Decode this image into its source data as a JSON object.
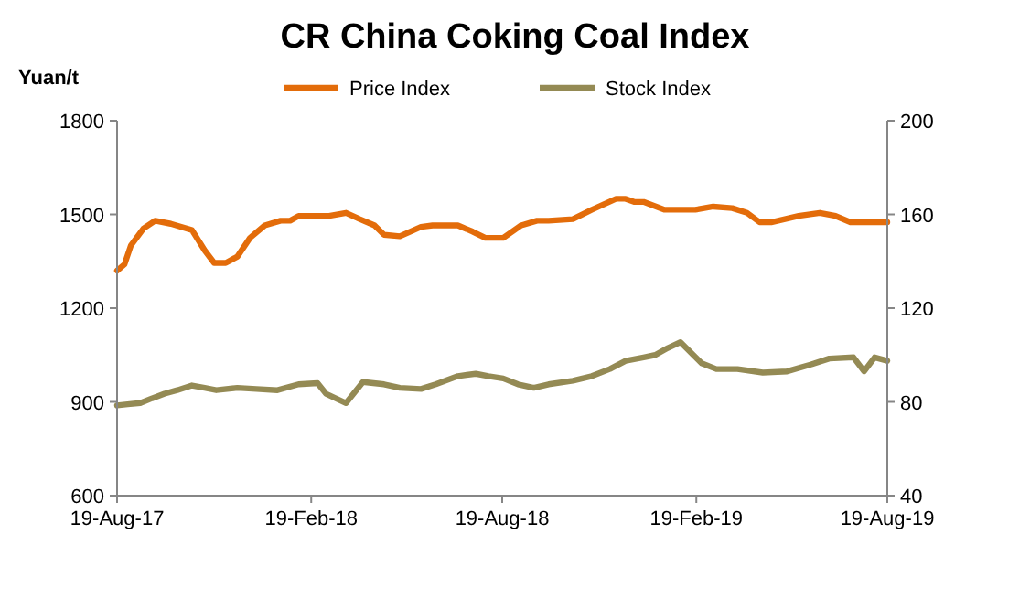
{
  "chart_data": {
    "type": "line",
    "title": "CR China Coking Coal Index",
    "ylabel": "Yuan/t",
    "xlim": [
      "2017-08-19",
      "2019-08-19"
    ],
    "xticks": [
      {
        "value": "2017-08-19",
        "label": "19-Aug-17"
      },
      {
        "value": "2018-02-19",
        "label": "19-Feb-18"
      },
      {
        "value": "2018-08-19",
        "label": "19-Aug-18"
      },
      {
        "value": "2019-02-19",
        "label": "19-Feb-19"
      },
      {
        "value": "2019-08-19",
        "label": "19-Aug-19"
      }
    ],
    "ylim": [
      600,
      1800
    ],
    "yticks": [
      600,
      900,
      1200,
      1500,
      1800
    ],
    "y2lim": [
      40,
      200
    ],
    "y2ticks": [
      40,
      80,
      120,
      160,
      200
    ],
    "legend": "top",
    "grid": false,
    "marker": "none",
    "line_style": "solid",
    "series": [
      {
        "name": "Price Index",
        "color": "#e36c0a",
        "x": [
          "2017-08-19",
          "2017-08-26",
          "2017-09-01",
          "2017-09-13",
          "2017-09-24",
          "2017-10-09",
          "2017-10-29",
          "2017-11-10",
          "2017-11-19",
          "2017-11-30",
          "2017-12-11",
          "2017-12-23",
          "2018-01-06",
          "2018-01-21",
          "2018-01-30",
          "2018-02-07",
          "2018-03-08",
          "2018-03-24",
          "2018-04-06",
          "2018-04-20",
          "2018-04-29",
          "2018-05-14",
          "2018-06-03",
          "2018-06-14",
          "2018-07-08",
          "2018-07-22",
          "2018-08-03",
          "2018-08-20",
          "2018-09-06",
          "2018-09-21",
          "2018-10-02",
          "2018-10-25",
          "2018-11-12",
          "2018-12-05",
          "2018-12-14",
          "2018-12-22",
          "2018-12-31",
          "2019-01-20",
          "2019-02-18",
          "2019-03-07",
          "2019-03-25",
          "2019-04-08",
          "2019-04-20",
          "2019-05-01",
          "2019-05-27",
          "2019-06-16",
          "2019-07-01",
          "2019-07-15",
          "2019-08-19"
        ],
        "values": [
          1320,
          1340,
          1400,
          1455,
          1480,
          1470,
          1450,
          1385,
          1345,
          1345,
          1365,
          1425,
          1465,
          1480,
          1480,
          1495,
          1495,
          1505,
          1485,
          1465,
          1435,
          1430,
          1460,
          1465,
          1465,
          1445,
          1425,
          1425,
          1465,
          1480,
          1480,
          1485,
          1515,
          1550,
          1550,
          1540,
          1540,
          1515,
          1515,
          1525,
          1520,
          1505,
          1475,
          1475,
          1495,
          1505,
          1495,
          1475,
          1475
        ]
      },
      {
        "name": "Stock Index",
        "color": "#948a54",
        "axis": "y2",
        "x": [
          "2017-08-19",
          "2017-08-29",
          "2017-09-10",
          "2017-09-21",
          "2017-10-03",
          "2017-10-15",
          "2017-10-29",
          "2017-11-10",
          "2017-11-21",
          "2017-12-11",
          "2017-12-29",
          "2018-01-18",
          "2018-02-07",
          "2018-02-25",
          "2018-03-05",
          "2018-03-24",
          "2018-04-09",
          "2018-04-29",
          "2018-05-14",
          "2018-06-03",
          "2018-06-17",
          "2018-07-08",
          "2018-07-25",
          "2018-08-06",
          "2018-08-20",
          "2018-09-03",
          "2018-09-18",
          "2018-10-02",
          "2018-10-25",
          "2018-11-12",
          "2018-11-29",
          "2018-12-14",
          "2018-12-31",
          "2019-01-11",
          "2019-01-23",
          "2019-02-04",
          "2019-02-24",
          "2019-03-10",
          "2019-03-30",
          "2019-04-23",
          "2019-05-16",
          "2019-06-08",
          "2019-06-25",
          "2019-07-18",
          "2019-07-28",
          "2019-08-07",
          "2019-08-19"
        ],
        "values": [
          78.5,
          79,
          79.5,
          81.5,
          83.5,
          85,
          87,
          86,
          85,
          86,
          85.5,
          85,
          87.5,
          88,
          83.5,
          79.5,
          88.5,
          87.5,
          86,
          85.5,
          87.5,
          91,
          92,
          91,
          90,
          87.5,
          86,
          87.5,
          89,
          91,
          94,
          97.5,
          99,
          100,
          103,
          105.5,
          96.5,
          94,
          94,
          92.5,
          93,
          96,
          98.5,
          99,
          93,
          99,
          97.5
        ]
      }
    ]
  }
}
